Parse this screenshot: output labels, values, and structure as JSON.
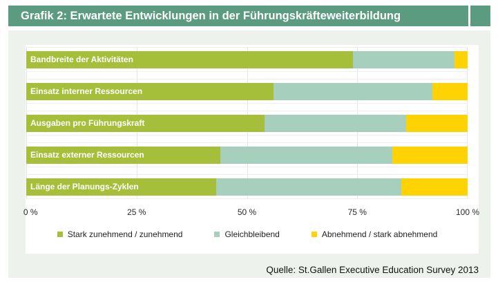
{
  "header": {
    "title": "Grafik 2: Erwartete Entwicklungen in der Führungskräfteweiterbildung"
  },
  "footer": {
    "source": "Quelle: St.Gallen Executive Education Survey 2013"
  },
  "colors": {
    "header_green": "#5b9c81",
    "panel_bg": "#edf2ed",
    "increase_green": "#a6bf3a",
    "stable_teal": "#a7cfbd",
    "decrease_yellow": "#ffd203",
    "gridline": "#e5e5e5"
  },
  "chart_data": {
    "type": "bar",
    "orientation": "horizontal_stacked",
    "unit": "%",
    "title": "Grafik 2: Erwartete Entwicklungen in der Führungskräfteweiterbildung",
    "categories": [
      "Bandbreite der Aktivitäten",
      "Einsatz interner Ressourcen",
      "Ausgaben pro Führungskraft",
      "Einsatz externer Ressourcen",
      "Länge der Planungs-Zyklen"
    ],
    "series": [
      {
        "name": "Stark zunehmend / zunehmend",
        "color": "#a6bf3a",
        "values": [
          74,
          56,
          54,
          44,
          43
        ]
      },
      {
        "name": "Gleichbleibend",
        "color": "#a7cfbd",
        "values": [
          23,
          36,
          32,
          39,
          42
        ]
      },
      {
        "name": "Abnehmend / stark abnehmend",
        "color": "#ffd203",
        "values": [
          3,
          8,
          14,
          17,
          15
        ]
      }
    ],
    "xlim": [
      0,
      100
    ],
    "x_ticks": [
      {
        "value": 0,
        "label": "0 %"
      },
      {
        "value": 25,
        "label": "25 %"
      },
      {
        "value": 50,
        "label": "50 %"
      },
      {
        "value": 75,
        "label": "75 %"
      },
      {
        "value": 100,
        "label": "100 %"
      }
    ],
    "grid": true,
    "legend_position": "bottom"
  }
}
